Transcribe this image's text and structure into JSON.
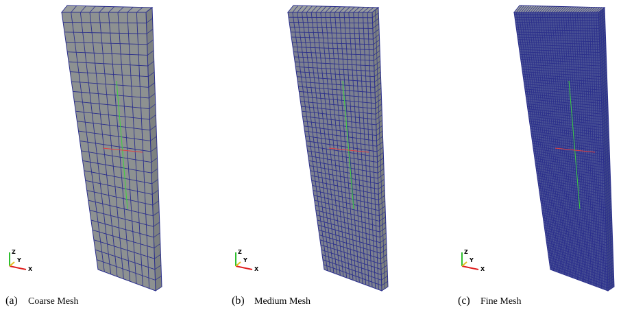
{
  "panels": [
    {
      "label": "(a)",
      "caption": "Coarse Mesh",
      "axes": [
        "Z",
        "Y",
        "X"
      ]
    },
    {
      "label": "(b)",
      "caption": "Medium Mesh",
      "axes": [
        "Z",
        "Y",
        "X"
      ]
    },
    {
      "label": "(c)",
      "caption": "Fine Mesh",
      "axes": [
        "Z",
        "Y",
        "X"
      ]
    }
  ]
}
